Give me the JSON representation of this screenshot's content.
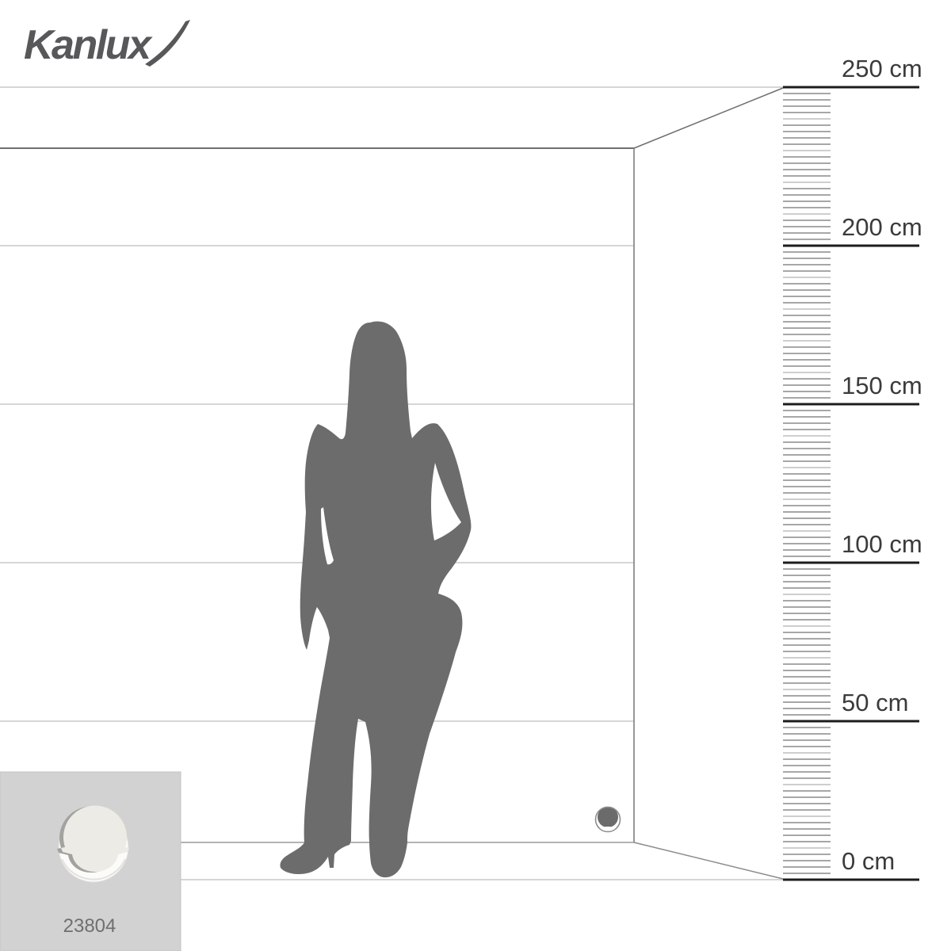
{
  "brand": {
    "logo_text": "Kanlux"
  },
  "ruler": {
    "unit": "cm",
    "min_cm": 0,
    "max_cm": 250,
    "major_step_cm": 50,
    "minor_step_cm": 2,
    "labels": [
      "250 cm",
      "200 cm",
      "150 cm",
      "100 cm",
      "50 cm",
      "0 cm"
    ]
  },
  "product": {
    "code": "23804"
  },
  "scene": {
    "figure": "woman-silhouette",
    "figure_color": "#6c6c6c",
    "fixture": "round-wall-light",
    "wall_line_light": "#c9c9c9",
    "wall_line_dark": "#6f6f6f",
    "wall_line_mid": "#8f8f8f",
    "ruler_major_color": "#1c1c1c",
    "tick_dark": "#4f4f4f",
    "tick_light": "#9c9c9c",
    "label_color": "#3b3b3b",
    "logo_color": "#58585a",
    "card_bg": "#d2d2d2",
    "card_code_color": "#6f6f6f"
  }
}
